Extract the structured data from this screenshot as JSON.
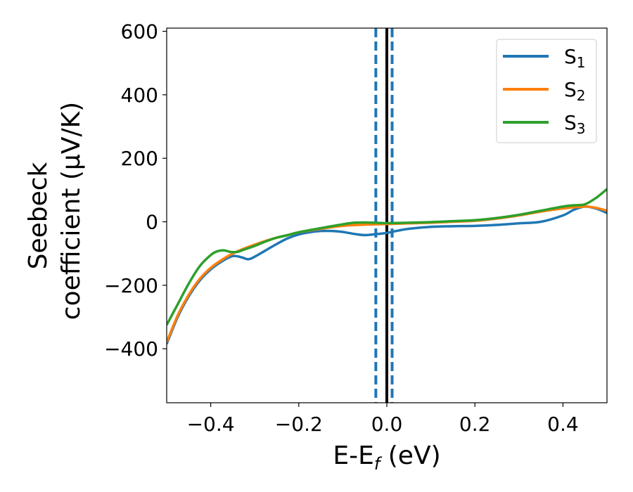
{
  "chart_data": {
    "type": "line",
    "xlabel": "E-E",
    "xlabel_sub": "f",
    "xlabel_unit": " (eV)",
    "ylabel_line1": "Seebeck",
    "ylabel_line2": "coefficient  (μV/K)",
    "xlim": [
      -0.5,
      0.5
    ],
    "ylim": [
      -570,
      610
    ],
    "x_ticks": [
      -0.4,
      -0.2,
      0.0,
      0.2,
      0.4
    ],
    "x_tick_labels": [
      "−0.4",
      "−0.2",
      "0.0",
      "0.2",
      "0.4"
    ],
    "y_ticks": [
      -400,
      -200,
      0,
      200,
      400,
      600
    ],
    "y_tick_labels": [
      "−400",
      "−200",
      "0",
      "200",
      "400",
      "600"
    ],
    "grid": false,
    "legend_position": "top-right",
    "vlines": [
      {
        "x": 0.0,
        "style": "solid",
        "color": "#000000"
      },
      {
        "x": -0.025,
        "style": "dashed",
        "color": "#1f77b4"
      },
      {
        "x": 0.012,
        "style": "dashed",
        "color": "#1f77b4"
      }
    ],
    "series": [
      {
        "label_main": "S",
        "label_sub": "1",
        "color": "#1f77b4",
        "points": [
          [
            -0.5,
            -385
          ],
          [
            -0.475,
            -300
          ],
          [
            -0.45,
            -235
          ],
          [
            -0.425,
            -185
          ],
          [
            -0.4,
            -150
          ],
          [
            -0.375,
            -125
          ],
          [
            -0.35,
            -108
          ],
          [
            -0.33,
            -112
          ],
          [
            -0.315,
            -118
          ],
          [
            -0.3,
            -110
          ],
          [
            -0.275,
            -90
          ],
          [
            -0.25,
            -70
          ],
          [
            -0.225,
            -52
          ],
          [
            -0.2,
            -40
          ],
          [
            -0.175,
            -33
          ],
          [
            -0.15,
            -29
          ],
          [
            -0.125,
            -29
          ],
          [
            -0.1,
            -32
          ],
          [
            -0.075,
            -38
          ],
          [
            -0.05,
            -42
          ],
          [
            -0.025,
            -39
          ],
          [
            0.0,
            -35
          ],
          [
            0.025,
            -28
          ],
          [
            0.05,
            -22
          ],
          [
            0.1,
            -16
          ],
          [
            0.15,
            -14
          ],
          [
            0.2,
            -13
          ],
          [
            0.25,
            -10
          ],
          [
            0.3,
            -5
          ],
          [
            0.35,
            0
          ],
          [
            0.4,
            20
          ],
          [
            0.425,
            38
          ],
          [
            0.45,
            48
          ],
          [
            0.475,
            42
          ],
          [
            0.5,
            28
          ]
        ]
      },
      {
        "label_main": "S",
        "label_sub": "2",
        "color": "#ff7f0e",
        "points": [
          [
            -0.5,
            -380
          ],
          [
            -0.475,
            -295
          ],
          [
            -0.45,
            -230
          ],
          [
            -0.425,
            -180
          ],
          [
            -0.4,
            -145
          ],
          [
            -0.375,
            -120
          ],
          [
            -0.35,
            -100
          ],
          [
            -0.325,
            -85
          ],
          [
            -0.3,
            -72
          ],
          [
            -0.275,
            -60
          ],
          [
            -0.25,
            -50
          ],
          [
            -0.225,
            -42
          ],
          [
            -0.2,
            -33
          ],
          [
            -0.15,
            -22
          ],
          [
            -0.1,
            -13
          ],
          [
            -0.05,
            -9
          ],
          [
            -0.025,
            -8
          ],
          [
            0.0,
            -7
          ],
          [
            0.05,
            -5
          ],
          [
            0.1,
            -3
          ],
          [
            0.15,
            0
          ],
          [
            0.2,
            3
          ],
          [
            0.25,
            10
          ],
          [
            0.3,
            20
          ],
          [
            0.35,
            32
          ],
          [
            0.4,
            42
          ],
          [
            0.45,
            48
          ],
          [
            0.475,
            44
          ],
          [
            0.5,
            35
          ]
        ]
      },
      {
        "label_main": "S",
        "label_sub": "3",
        "color": "#2ca02c",
        "points": [
          [
            -0.5,
            -325
          ],
          [
            -0.475,
            -260
          ],
          [
            -0.45,
            -195
          ],
          [
            -0.425,
            -140
          ],
          [
            -0.4,
            -105
          ],
          [
            -0.385,
            -93
          ],
          [
            -0.37,
            -90
          ],
          [
            -0.355,
            -95
          ],
          [
            -0.34,
            -95
          ],
          [
            -0.325,
            -88
          ],
          [
            -0.3,
            -76
          ],
          [
            -0.275,
            -62
          ],
          [
            -0.25,
            -50
          ],
          [
            -0.225,
            -42
          ],
          [
            -0.2,
            -33
          ],
          [
            -0.15,
            -20
          ],
          [
            -0.1,
            -8
          ],
          [
            -0.075,
            -3
          ],
          [
            -0.05,
            -2
          ],
          [
            -0.025,
            -3
          ],
          [
            0.0,
            -4
          ],
          [
            0.05,
            -3
          ],
          [
            0.1,
            -1
          ],
          [
            0.15,
            2
          ],
          [
            0.2,
            5
          ],
          [
            0.25,
            12
          ],
          [
            0.3,
            22
          ],
          [
            0.35,
            35
          ],
          [
            0.4,
            48
          ],
          [
            0.425,
            52
          ],
          [
            0.45,
            55
          ],
          [
            0.475,
            75
          ],
          [
            0.5,
            103
          ]
        ]
      }
    ]
  }
}
